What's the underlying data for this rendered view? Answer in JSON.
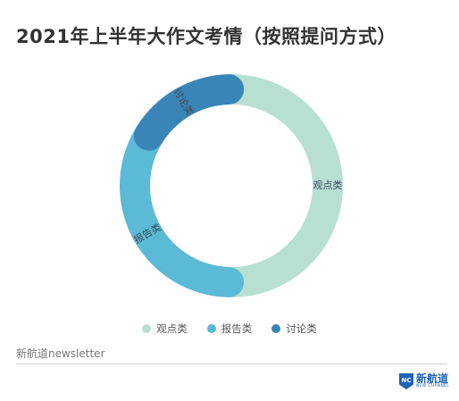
{
  "title": "2021年上半年大作文考情（按照提问方式）",
  "chart_data": {
    "type": "pie",
    "title": "2021年上半年大作文考情（按照提问方式）",
    "categories": [
      "观点类",
      "报告类",
      "讨论类"
    ],
    "values": [
      50,
      33.3,
      16.7
    ],
    "colors": [
      "#b8e0d2",
      "#5bbad5",
      "#3a85b8"
    ],
    "legend_position": "bottom"
  },
  "legend": {
    "items": [
      "观点类",
      "报告类",
      "讨论类"
    ]
  },
  "footer": {
    "source": "新航道newsletter",
    "logo_badge": "NC",
    "logo_cn": "新航道",
    "logo_en": "NEW CHANNEL"
  }
}
